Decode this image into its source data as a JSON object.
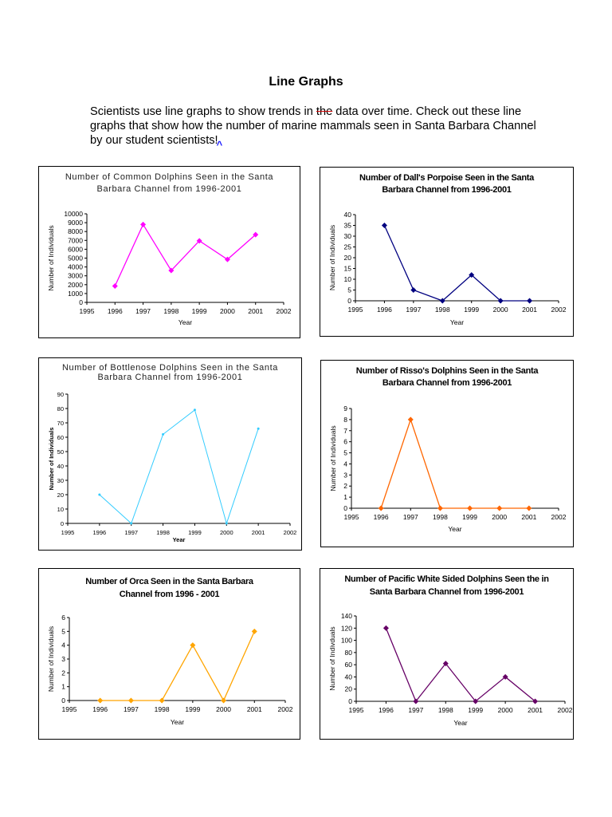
{
  "heading": "Line Graphs",
  "intro": {
    "before": "Scientists use line graphs to show trends in ",
    "struck": "the",
    "after": " data over time. Check out these line graphs that show how the number of marine mammals seen in Santa Barbara Channel by our student scientists!",
    "caret": "^"
  },
  "chart_data": [
    {
      "type": "line",
      "title_line1": "Number of Common Dolphins Seen in the Santa",
      "title_line2": "Barbara Channel from 1996-2001",
      "xlabel": "Year",
      "ylabel": "Number of Individuals",
      "x": [
        1996,
        1997,
        1998,
        1999,
        2000,
        2001
      ],
      "values": [
        1850,
        8800,
        3600,
        6950,
        4850,
        7650
      ],
      "xlim": [
        1995,
        2002
      ],
      "ylim": [
        0,
        10000
      ],
      "xticks": [
        "1995",
        "1996",
        "1997",
        "1998",
        "1999",
        "2000",
        "2001",
        "2002"
      ],
      "yticks": [
        "0",
        "1000",
        "2000",
        "3000",
        "4000",
        "5000",
        "6000",
        "7000",
        "8000",
        "9000",
        "10000"
      ],
      "color": "#ff00ff",
      "marker": "diamond",
      "grid": false
    },
    {
      "type": "line",
      "title_line1": "Number of Dall's Porpoise Seen in the Santa",
      "title_line2": "Barbara Channel from 1996-2001",
      "xlabel": "Year",
      "ylabel": "Number of Individuals",
      "x": [
        1996,
        1997,
        1998,
        1999,
        2000,
        2001
      ],
      "values": [
        35,
        5,
        0,
        12,
        0,
        0
      ],
      "xlim": [
        1995,
        2002
      ],
      "ylim": [
        0,
        40
      ],
      "xticks": [
        "1995",
        "1996",
        "1997",
        "1998",
        "1999",
        "2000",
        "2001",
        "2002"
      ],
      "yticks": [
        "0",
        "5",
        "10",
        "15",
        "20",
        "25",
        "30",
        "35",
        "40"
      ],
      "color": "#000080",
      "marker": "diamond",
      "grid": false
    },
    {
      "type": "line",
      "title_line1": "Number of Bottlenose Dolphins Seen in the Santa",
      "title_line2": "Barbara Channel from 1996-2001",
      "xlabel": "Year",
      "ylabel": "Number of Individuals",
      "x": [
        1996,
        1997,
        1998,
        1999,
        2000,
        2001
      ],
      "values": [
        20,
        0,
        62,
        79,
        0,
        66
      ],
      "xlim": [
        1995,
        2002
      ],
      "ylim": [
        0,
        90
      ],
      "xticks": [
        "1995",
        "1996",
        "1997",
        "1998",
        "1999",
        "2000",
        "2001",
        "2002"
      ],
      "yticks": [
        "0",
        "10",
        "20",
        "30",
        "40",
        "50",
        "60",
        "70",
        "80",
        "90"
      ],
      "color": "#33ccff",
      "marker": "dot",
      "grid": false
    },
    {
      "type": "line",
      "title_line1": "Number of Risso's Dolphins Seen in the Santa",
      "title_line2": "Barbara Channel from 1996-2001",
      "xlabel": "Year",
      "ylabel": "Number of Individuals",
      "x": [
        1996,
        1997,
        1998,
        1999,
        2000,
        2001
      ],
      "values": [
        0,
        8,
        0,
        0,
        0,
        0
      ],
      "xlim": [
        1995,
        2002
      ],
      "ylim": [
        0,
        9
      ],
      "xticks": [
        "1995",
        "1996",
        "1997",
        "1998",
        "1999",
        "2000",
        "2001",
        "2002"
      ],
      "yticks": [
        "0",
        "1",
        "2",
        "3",
        "4",
        "5",
        "6",
        "7",
        "8",
        "9"
      ],
      "color": "#ff6600",
      "marker": "diamond",
      "grid": false
    },
    {
      "type": "line",
      "title_line1": "Number of Orca Seen in the Santa Barbara",
      "title_line2": "Channel from 1996 - 2001",
      "xlabel": "Year",
      "ylabel": "Number of Individuals",
      "x": [
        1996,
        1997,
        1998,
        1999,
        2000,
        2001
      ],
      "values": [
        0,
        0,
        0,
        4,
        0,
        5
      ],
      "xlim": [
        1995,
        2002
      ],
      "ylim": [
        0,
        6
      ],
      "xticks": [
        "1995",
        "1996",
        "1997",
        "1998",
        "1999",
        "2000",
        "2001",
        "2002"
      ],
      "yticks": [
        "0",
        "1",
        "2",
        "3",
        "4",
        "5",
        "6"
      ],
      "color": "#ffa500",
      "marker": "diamond",
      "grid": false
    },
    {
      "type": "line",
      "title_line1": "Number of Pacific White Sided Dolphins Seen the in",
      "title_line2": "Santa Barbara Channel from 1996-2001",
      "xlabel": "Year",
      "ylabel": "Number of Indivduals",
      "x": [
        1996,
        1997,
        1998,
        1999,
        2000,
        2001
      ],
      "values": [
        120,
        0,
        62,
        0,
        40,
        0
      ],
      "xlim": [
        1995,
        2002
      ],
      "ylim": [
        0,
        140
      ],
      "xticks": [
        "1995",
        "1996",
        "1997",
        "1998",
        "1999",
        "2000",
        "2001",
        "2002"
      ],
      "yticks": [
        "0",
        "20",
        "40",
        "60",
        "80",
        "100",
        "120",
        "140"
      ],
      "color": "#660066",
      "marker": "diamond",
      "grid": false
    }
  ]
}
